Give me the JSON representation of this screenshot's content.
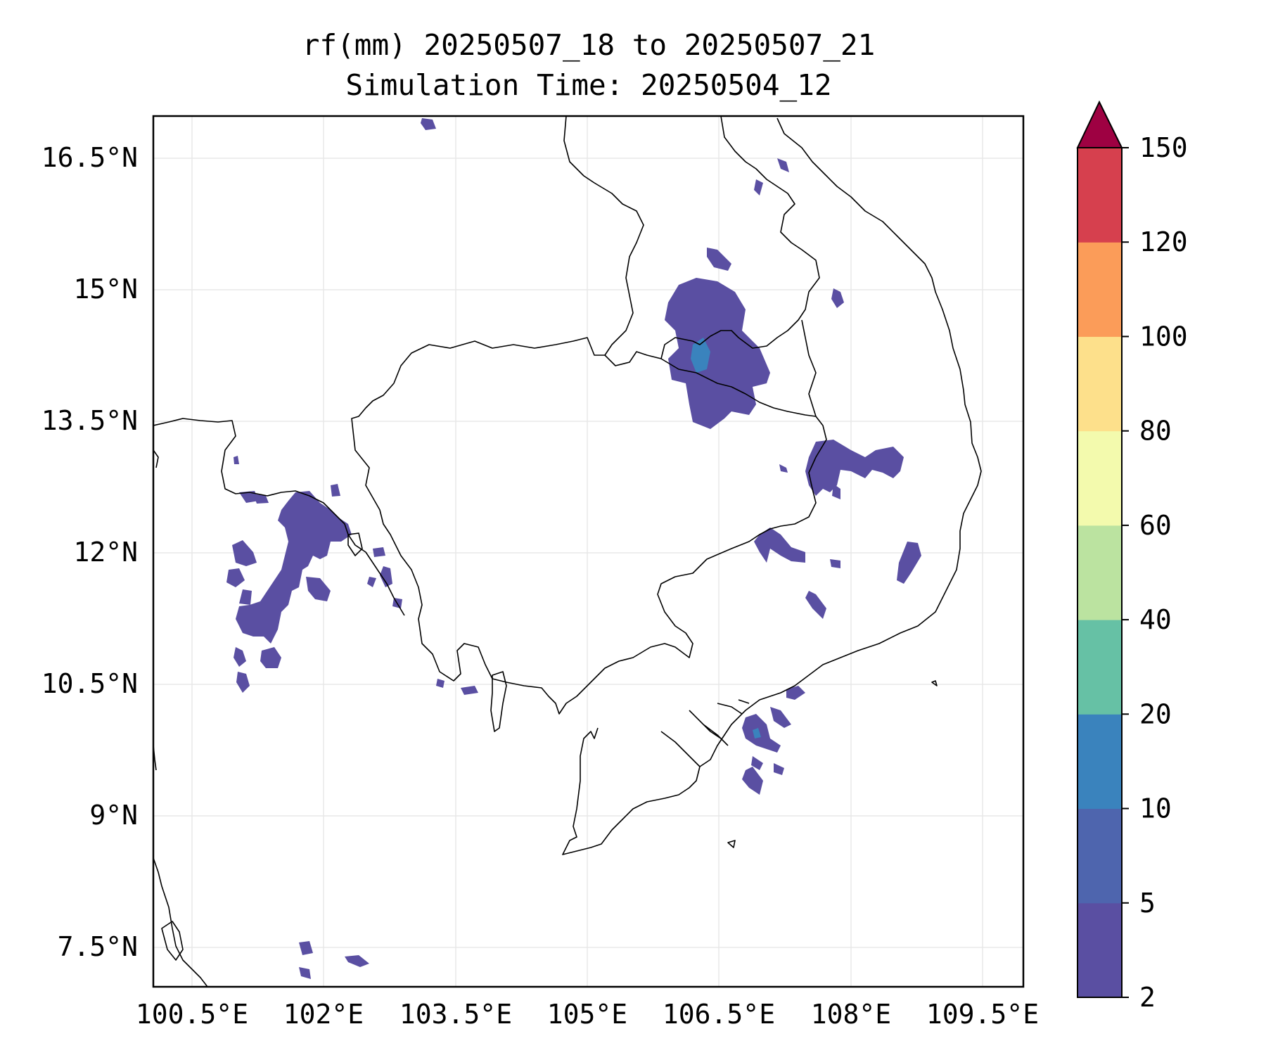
{
  "title": {
    "line1": "rf(mm) 20250507_18 to 20250507_21",
    "line2": "Simulation Time: 20250504_12"
  },
  "map": {
    "lon_ticks": [
      "100.5°E",
      "102°E",
      "103.5°E",
      "105°E",
      "106.5°E",
      "108°E",
      "109.5°E"
    ],
    "lat_ticks": [
      "16.5°N",
      "15°N",
      "13.5°N",
      "12°N",
      "10.5°N",
      "9°N",
      "7.5°N"
    ],
    "lon_values": [
      100.5,
      102,
      103.5,
      105,
      106.5,
      108,
      109.5
    ],
    "lat_values": [
      16.5,
      15,
      13.5,
      12,
      10.5,
      9,
      7.5
    ],
    "lon_range": [
      100.5,
      110.0
    ],
    "lat_range": [
      7.0,
      17.0
    ]
  },
  "colorbar": {
    "levels": [
      "2",
      "5",
      "10",
      "20",
      "40",
      "60",
      "80",
      "100",
      "120",
      "150"
    ],
    "colors": [
      "#5a4fa2",
      "#4e65ae",
      "#3a83bd",
      "#66c1a5",
      "#bbe3a0",
      "#f3faad",
      "#fde08b",
      "#fb9c59",
      "#d6404e",
      "#9e0142"
    ],
    "extend": "max"
  },
  "rain_colors": {
    "light": "#5a4fa2",
    "moderate": "#3a83bd"
  }
}
